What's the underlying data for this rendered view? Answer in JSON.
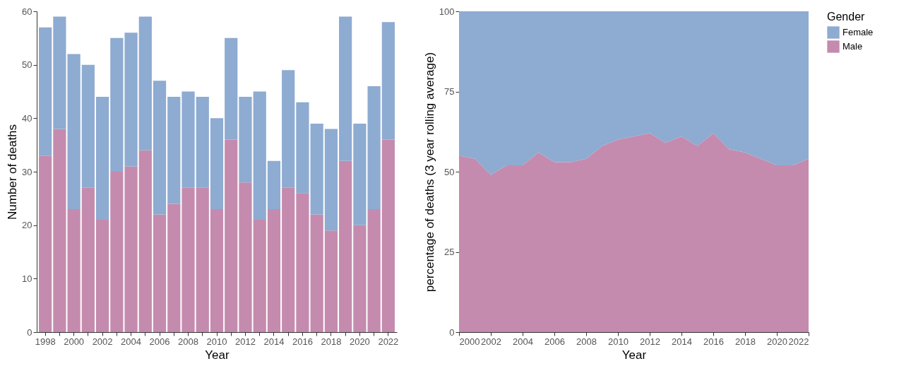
{
  "chart_data": [
    {
      "type": "bar",
      "stacked": true,
      "xlabel": "Year",
      "ylabel": "Number of deaths",
      "categories": [
        "1998",
        null,
        "2000",
        null,
        "2002",
        null,
        "2004",
        null,
        "2006",
        null,
        "2008",
        null,
        "2010",
        null,
        "2012",
        null,
        "2014",
        null,
        "2016",
        null,
        "2018",
        null,
        "2020",
        null,
        "2022"
      ],
      "series": [
        {
          "name": "Male",
          "color": "#c48bae",
          "values": [
            33,
            38,
            23,
            27,
            21,
            30,
            31,
            34,
            22,
            24,
            27,
            27,
            23,
            36,
            28,
            21,
            23,
            27,
            26,
            22,
            19,
            32,
            20,
            23,
            36
          ]
        },
        {
          "name": "Female",
          "color": "#8eabd1",
          "values": [
            24,
            21,
            29,
            23,
            23,
            25,
            25,
            25,
            25,
            20,
            18,
            17,
            17,
            19,
            16,
            24,
            9,
            22,
            17,
            17,
            19,
            27,
            19,
            23,
            22
          ]
        }
      ],
      "ylim": [
        0,
        60
      ],
      "yticks": [
        0,
        10,
        20,
        30,
        40,
        50,
        60
      ],
      "legend": "right"
    },
    {
      "type": "area",
      "stacked": true,
      "xlabel": "Year",
      "ylabel": "percentage of deaths (3 year rolling average)",
      "legend_title": "Gender",
      "x": [
        2000,
        2001,
        2002,
        2003,
        2004,
        2005,
        2006,
        2007,
        2008,
        2009,
        2010,
        2011,
        2012,
        2013,
        2014,
        2015,
        2016,
        2017,
        2018,
        2019,
        2020,
        2021,
        2022
      ],
      "series": [
        {
          "name": "Male",
          "color": "#c48bae",
          "values": [
            55,
            54,
            49,
            52,
            52,
            56,
            53,
            53,
            54,
            58,
            60,
            61,
            62,
            59,
            61,
            58,
            62,
            57,
            56,
            54,
            52,
            52,
            54
          ]
        },
        {
          "name": "Female",
          "color": "#8eabd1",
          "values": [
            45,
            46,
            51,
            48,
            48,
            44,
            47,
            47,
            46,
            42,
            40,
            39,
            38,
            41,
            39,
            42,
            38,
            43,
            44,
            46,
            48,
            48,
            46
          ]
        }
      ],
      "xlim": [
        2000,
        2022
      ],
      "xticks": [
        2000,
        2002,
        2004,
        2006,
        2008,
        2010,
        2012,
        2014,
        2016,
        2018,
        2020,
        2022
      ],
      "ylim": [
        0,
        100
      ],
      "yticks": [
        0,
        25,
        50,
        75,
        100
      ],
      "legend": "right"
    }
  ]
}
